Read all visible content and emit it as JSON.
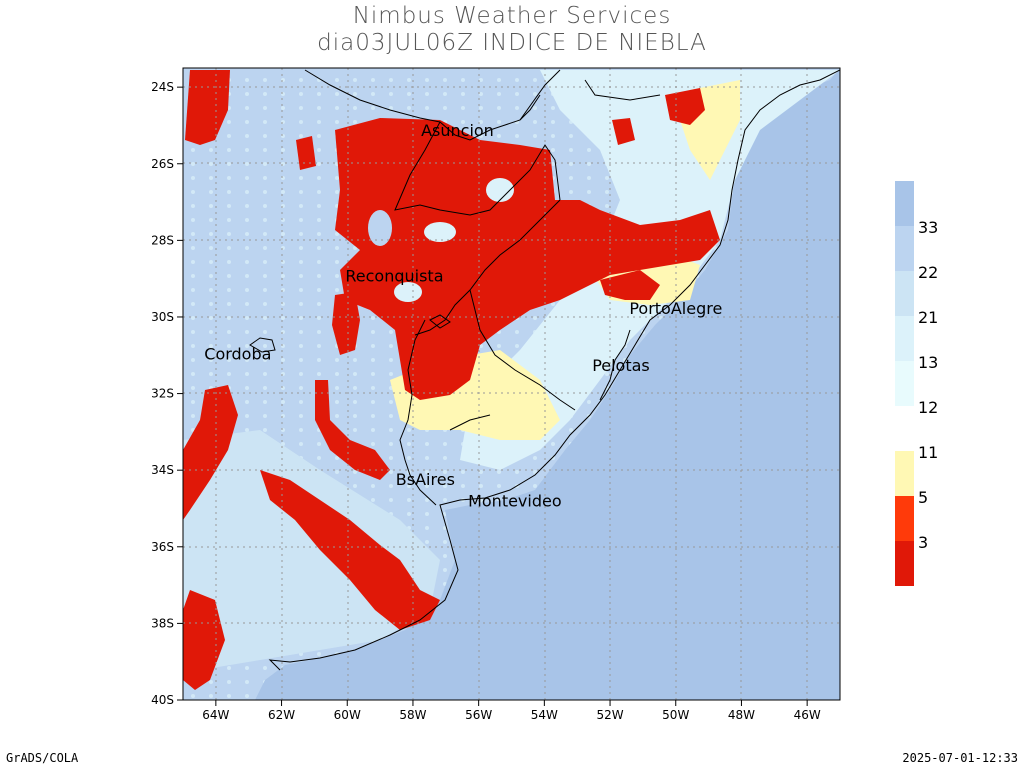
{
  "title": {
    "line1": "Nimbus Weather Services",
    "line2": "dia03JUL06Z INDICE DE NIEBLA"
  },
  "map": {
    "lat_ticks": [
      "24S",
      "26S",
      "28S",
      "30S",
      "32S",
      "34S",
      "36S",
      "38S",
      "40S"
    ],
    "lon_ticks": [
      "64W",
      "62W",
      "60W",
      "58W",
      "56W",
      "54W",
      "52W",
      "50W",
      "48W",
      "46W"
    ],
    "extent": {
      "lon_min": -65,
      "lon_max": -45,
      "lat_min": -40,
      "lat_max": -23.5
    },
    "cities": [
      {
        "name": "Asuncion",
        "lon": -57.6,
        "lat": -25.3
      },
      {
        "name": "Reconquista",
        "lon": -59.6,
        "lat": -29.2
      },
      {
        "name": "PortoAlegre",
        "lon": -51.2,
        "lat": -30.0
      },
      {
        "name": "Cordoba",
        "lon": -64.2,
        "lat": -31.4
      },
      {
        "name": "Pelotas",
        "lon": -52.3,
        "lat": -31.8
      },
      {
        "name": "BsAires",
        "lon": -58.4,
        "lat": -34.6
      },
      {
        "name": "Montevideo",
        "lon": -56.2,
        "lat": -34.9
      }
    ]
  },
  "legend": {
    "upper": {
      "colors": [
        "#a8c4e8",
        "#bcd4f0",
        "#cce4f4",
        "#dcf2fa",
        "#e8fbfd"
      ],
      "labels": [
        "33",
        "22",
        "21",
        "13",
        "12"
      ]
    },
    "lower": {
      "colors": [
        "#fff8b4",
        "#ff3a0a",
        "#e01808"
      ],
      "labels": [
        "11",
        "5",
        "3"
      ]
    }
  },
  "colors": {
    "ocean": "#a8c4e8",
    "fog_low": "#e01808",
    "fog_mid": "#ff3a0a",
    "yellow": "#fff8b4"
  },
  "footer": {
    "left": "GrADS/COLA",
    "right": "2025-07-01-12:33"
  }
}
